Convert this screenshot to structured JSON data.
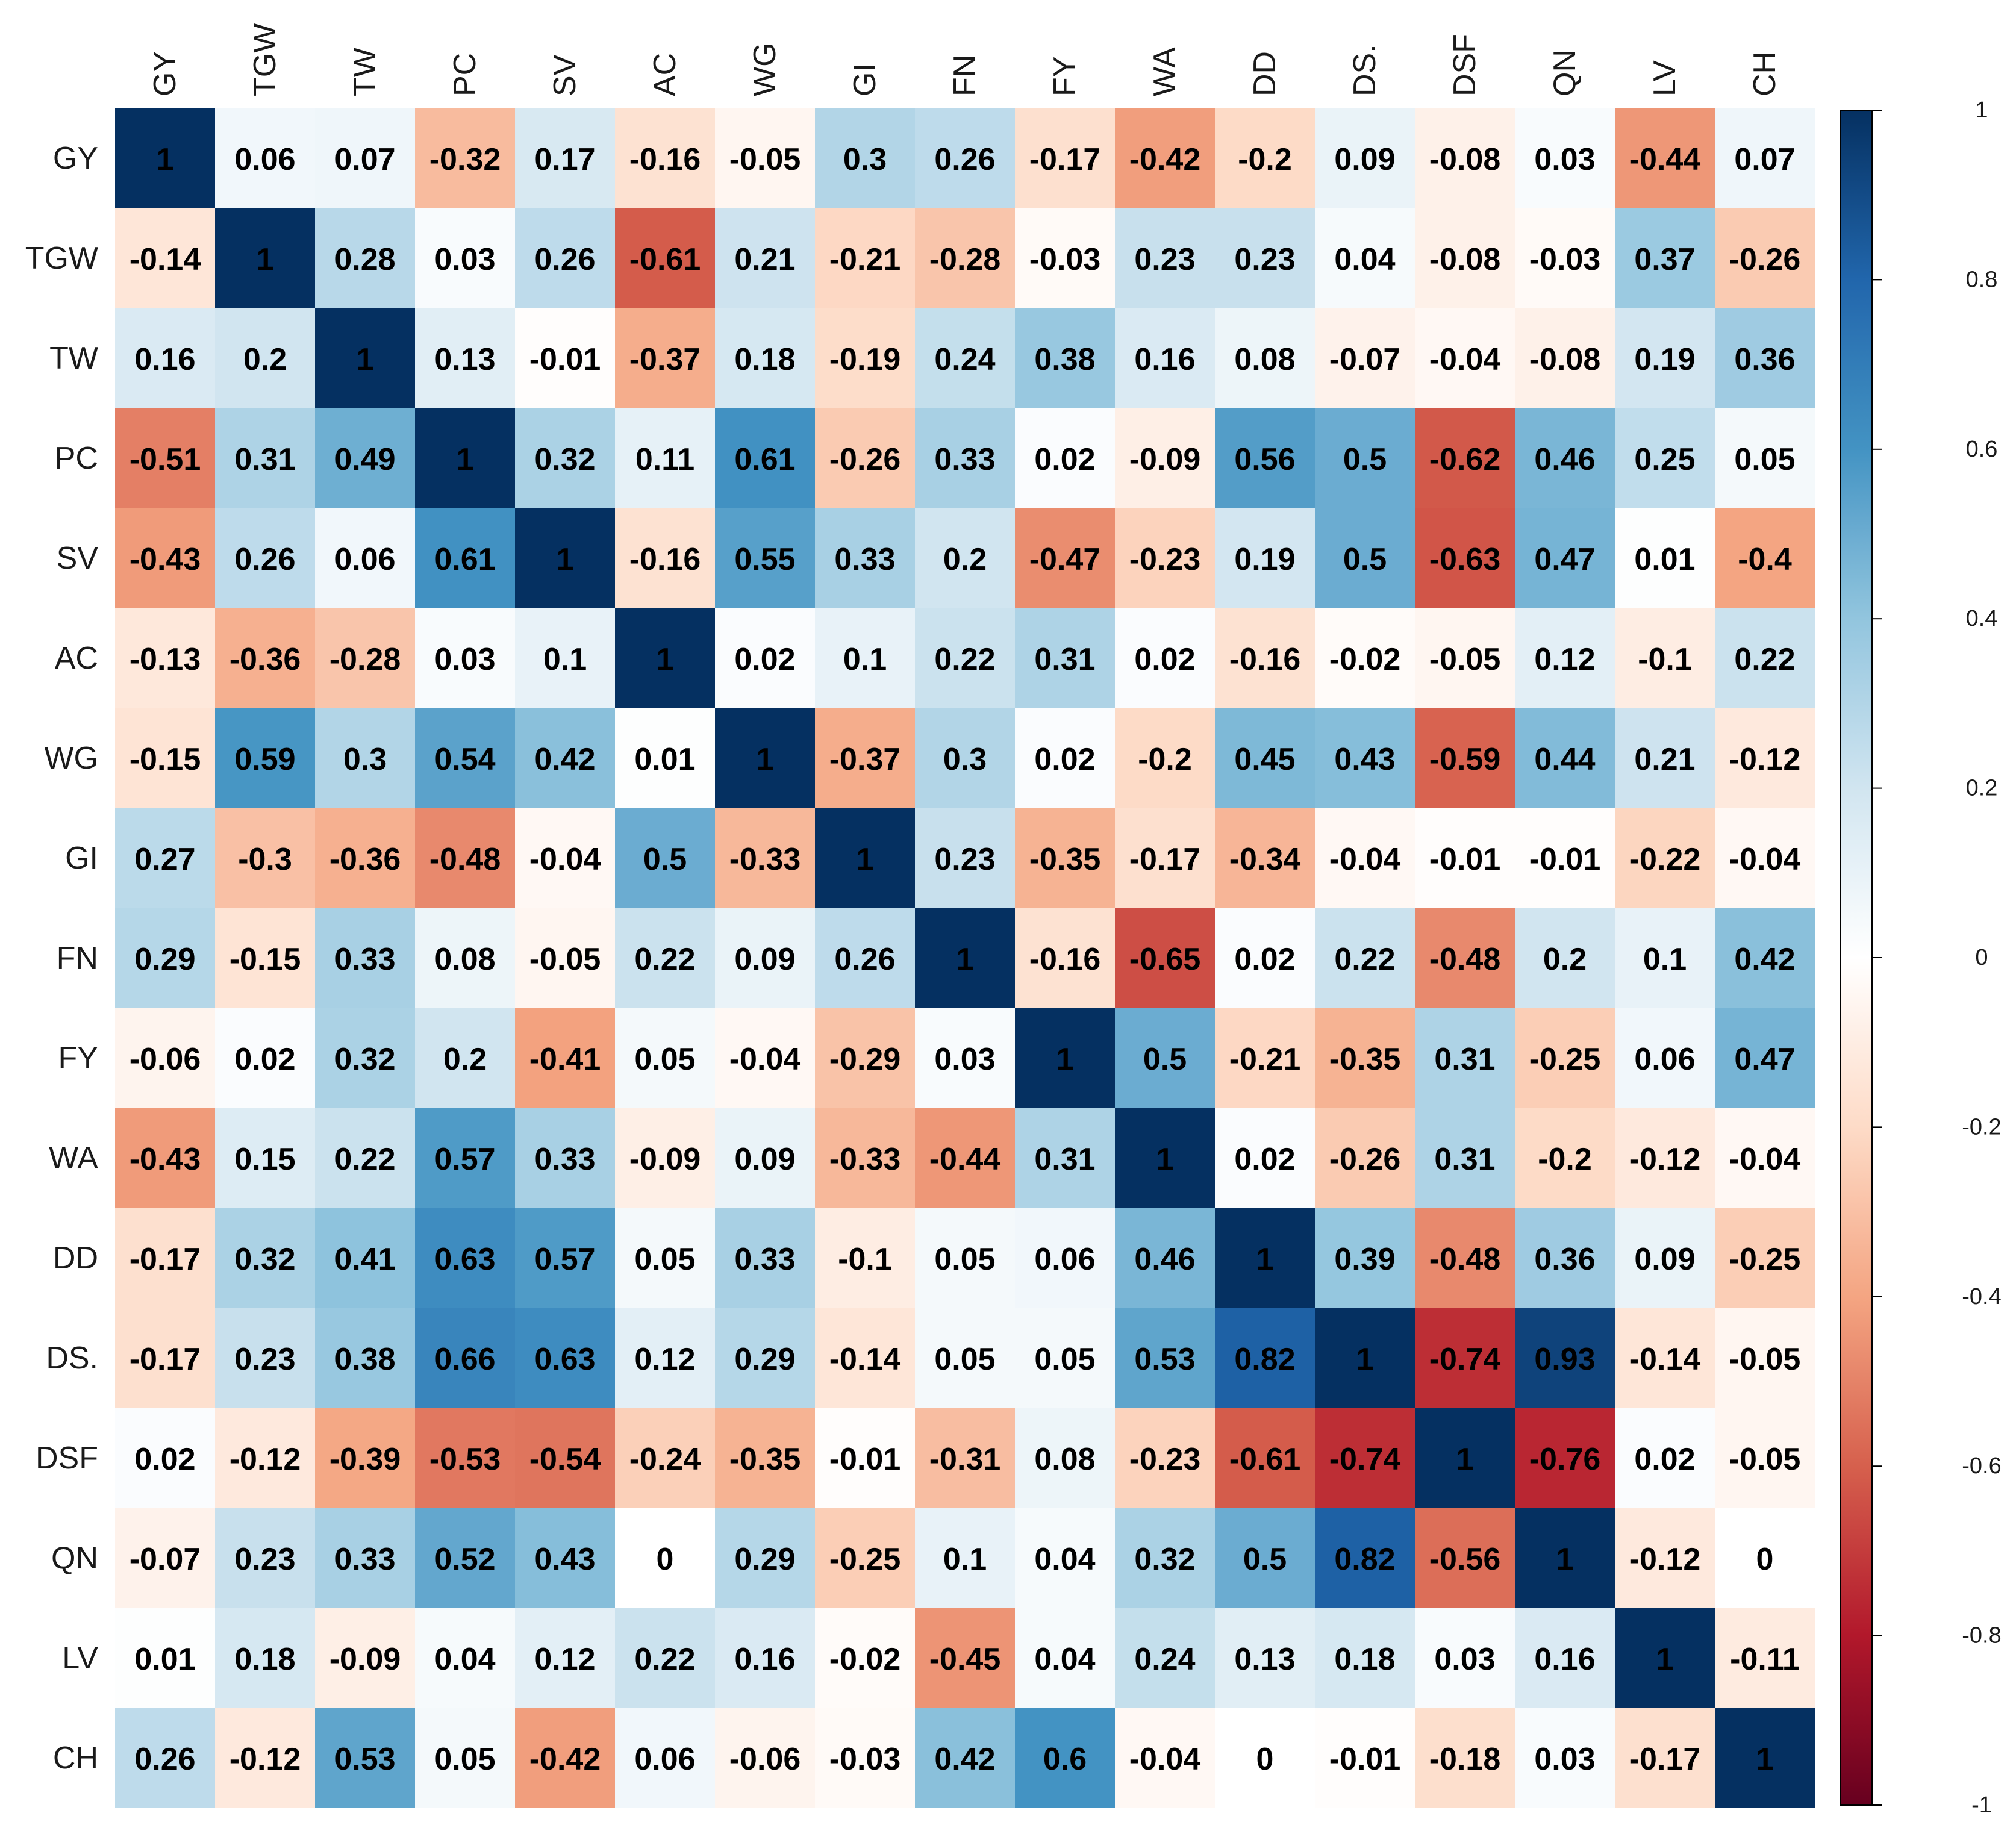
{
  "chart_data": {
    "type": "heatmap",
    "title": "",
    "xlabel": "",
    "ylabel": "",
    "variables": [
      "GY",
      "TGW",
      "TW",
      "PC",
      "SV",
      "AC",
      "WG",
      "GI",
      "FN",
      "FY",
      "WA",
      "DD",
      "DS.",
      "DSF",
      "QN",
      "LV",
      "CH"
    ],
    "matrix": [
      [
        1,
        0.06,
        0.07,
        -0.32,
        0.17,
        -0.16,
        -0.05,
        0.3,
        0.26,
        -0.17,
        -0.42,
        -0.2,
        0.09,
        -0.08,
        0.03,
        -0.44,
        0.07
      ],
      [
        -0.14,
        1,
        0.28,
        0.03,
        0.26,
        -0.61,
        0.21,
        -0.21,
        -0.28,
        -0.03,
        0.23,
        0.23,
        0.04,
        -0.08,
        -0.03,
        0.37,
        -0.26
      ],
      [
        0.16,
        0.2,
        1,
        0.13,
        -0.01,
        -0.37,
        0.18,
        -0.19,
        0.24,
        0.38,
        0.16,
        0.08,
        -0.07,
        -0.04,
        -0.08,
        0.19,
        0.36
      ],
      [
        -0.51,
        0.31,
        0.49,
        1,
        0.32,
        0.11,
        0.61,
        -0.26,
        0.33,
        0.02,
        -0.09,
        0.56,
        0.5,
        -0.62,
        0.46,
        0.25,
        0.05
      ],
      [
        -0.43,
        0.26,
        0.06,
        0.61,
        1,
        -0.16,
        0.55,
        0.33,
        0.2,
        -0.47,
        -0.23,
        0.19,
        0.5,
        -0.63,
        0.47,
        0.01,
        -0.4
      ],
      [
        -0.13,
        -0.36,
        -0.28,
        0.03,
        0.1,
        1,
        0.02,
        0.1,
        0.22,
        0.31,
        0.02,
        -0.16,
        -0.02,
        -0.05,
        0.12,
        -0.1,
        0.22
      ],
      [
        -0.15,
        0.59,
        0.3,
        0.54,
        0.42,
        0.01,
        1,
        -0.37,
        0.3,
        0.02,
        -0.2,
        0.45,
        0.43,
        -0.59,
        0.44,
        0.21,
        -0.12
      ],
      [
        0.27,
        -0.3,
        -0.36,
        -0.48,
        -0.04,
        0.5,
        -0.33,
        1,
        0.23,
        -0.35,
        -0.17,
        -0.34,
        -0.04,
        -0.01,
        -0.01,
        -0.22,
        -0.04
      ],
      [
        0.29,
        -0.15,
        0.33,
        0.08,
        -0.05,
        0.22,
        0.09,
        0.26,
        1,
        -0.16,
        -0.65,
        0.02,
        0.22,
        -0.48,
        0.2,
        0.1,
        0.42
      ],
      [
        -0.06,
        0.02,
        0.32,
        0.2,
        -0.41,
        0.05,
        -0.04,
        -0.29,
        0.03,
        1,
        0.5,
        -0.21,
        -0.35,
        0.31,
        -0.25,
        0.06,
        0.47
      ],
      [
        -0.43,
        0.15,
        0.22,
        0.57,
        0.33,
        -0.09,
        0.09,
        -0.33,
        -0.44,
        0.31,
        1,
        0.02,
        -0.26,
        0.31,
        -0.2,
        -0.12,
        -0.04
      ],
      [
        -0.17,
        0.32,
        0.41,
        0.63,
        0.57,
        0.05,
        0.33,
        -0.1,
        0.05,
        0.06,
        0.46,
        1,
        0.39,
        -0.48,
        0.36,
        0.09,
        -0.25
      ],
      [
        -0.17,
        0.23,
        0.38,
        0.66,
        0.63,
        0.12,
        0.29,
        -0.14,
        0.05,
        0.05,
        0.53,
        0.82,
        1,
        -0.74,
        0.93,
        -0.14,
        -0.05
      ],
      [
        0.02,
        -0.12,
        -0.39,
        -0.53,
        -0.54,
        -0.24,
        -0.35,
        -0.01,
        -0.31,
        0.08,
        -0.23,
        -0.61,
        -0.74,
        1,
        -0.76,
        0.02,
        -0.05
      ],
      [
        -0.07,
        0.23,
        0.33,
        0.52,
        0.43,
        0,
        0.29,
        -0.25,
        0.1,
        0.04,
        0.32,
        0.5,
        0.82,
        -0.56,
        1,
        -0.12,
        0
      ],
      [
        0.01,
        0.18,
        -0.09,
        0.04,
        0.12,
        0.22,
        0.16,
        -0.02,
        -0.45,
        0.04,
        0.24,
        0.13,
        0.18,
        0.03,
        0.16,
        1,
        -0.11
      ],
      [
        0.26,
        -0.12,
        0.53,
        0.05,
        -0.42,
        0.06,
        -0.06,
        -0.03,
        0.42,
        0.6,
        -0.04,
        0,
        -0.01,
        -0.18,
        0.03,
        -0.17,
        1
      ]
    ],
    "color_scale": {
      "range": [
        -1,
        1
      ],
      "ticks": [
        "1",
        "0.8",
        "0.6",
        "0.4",
        "0.2",
        "0",
        "-0.2",
        "-0.4",
        "-0.6",
        "-0.8",
        "-1"
      ],
      "palette": [
        "#67001f",
        "#b2182b",
        "#d6604d",
        "#f4a582",
        "#fddbc7",
        "#ffffff",
        "#d1e5f0",
        "#92c5de",
        "#4393c3",
        "#2166ac",
        "#053061"
      ]
    },
    "legend_position": "right",
    "grid": false
  }
}
